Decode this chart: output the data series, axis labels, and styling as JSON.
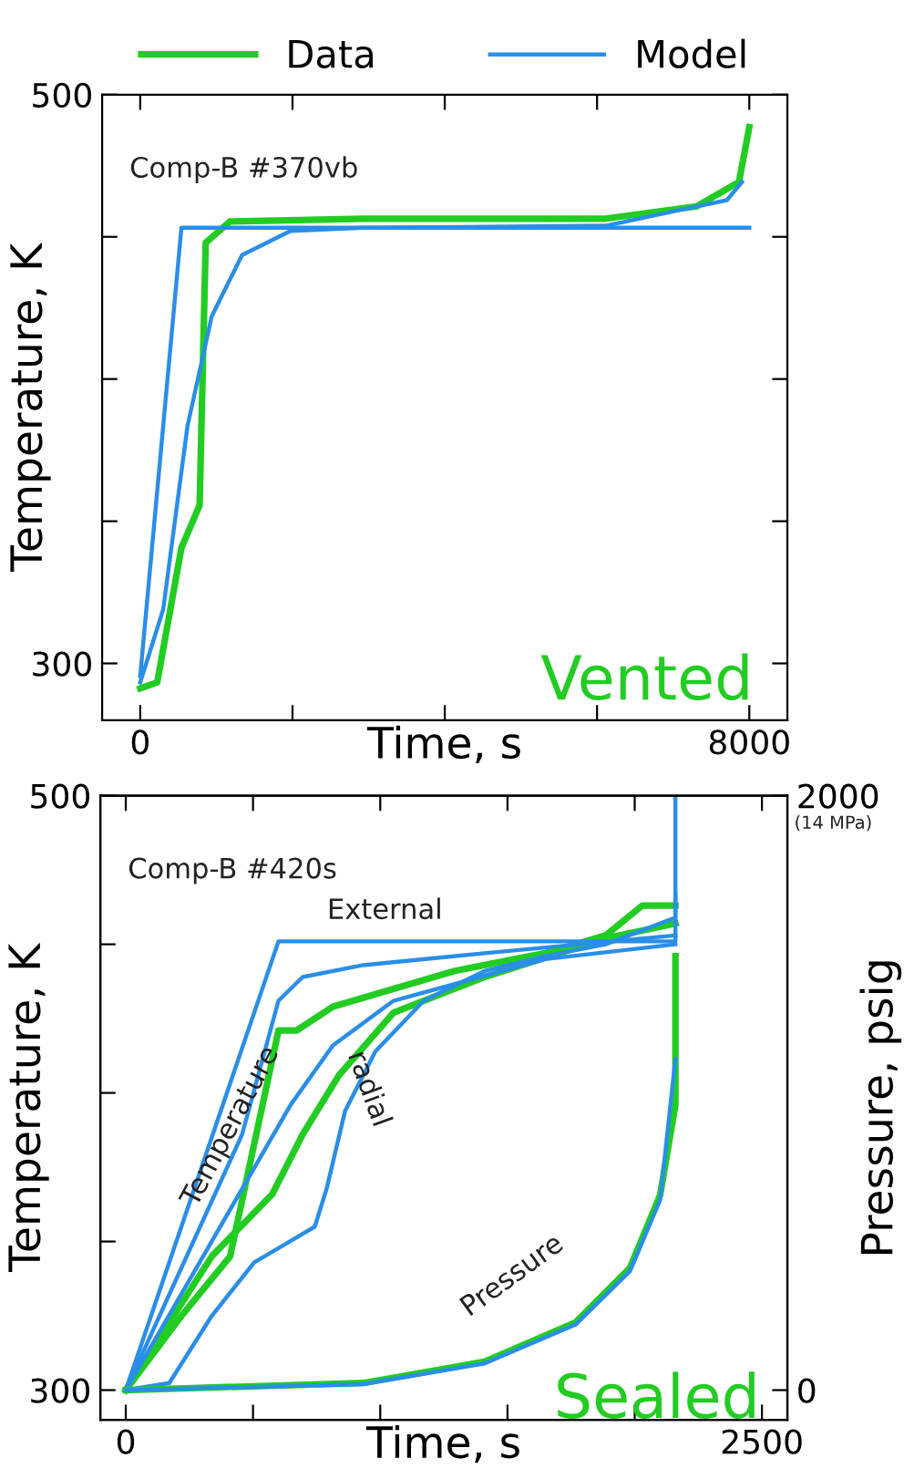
{
  "chart_data": [
    {
      "type": "line",
      "xlabel": "Time, s",
      "ylabel": "Temperature, K",
      "legend": "top",
      "grid": false,
      "xlim": [
        -500,
        8500
      ],
      "xticks": [
        0,
        {
          "value": 2000,
          "label": null
        },
        {
          "value": 4000,
          "label": null
        },
        {
          "value": 6000,
          "label": null
        },
        8000
      ],
      "ylim": [
        280,
        500
      ],
      "yticks": [
        300,
        {
          "value": 350,
          "label": null
        },
        {
          "value": 400,
          "label": null
        },
        {
          "value": 450,
          "label": null
        },
        500
      ],
      "annotations": [
        "Comp-B #370vb",
        "Vented"
      ],
      "series": [
        {
          "name": "Data",
          "color": "#22cc22",
          "x": [
            0,
            223,
            541,
            780,
            860,
            1178,
            2930,
            6113,
            7307,
            7864,
            8000
          ],
          "values": [
            291.2,
            293.3,
            340.6,
            355.6,
            447.9,
            455.4,
            456.4,
            456.4,
            460.7,
            469.3,
            488.6
          ]
        },
        {
          "name": "Model",
          "color": "#2a8ee8",
          "x": [
            0,
            302,
            621,
            939,
            1337,
            1974,
            2930,
            6113,
            7705,
            7904
          ],
          "values": [
            293.3,
            319,
            383.5,
            422,
            443.6,
            452.1,
            453.2,
            453.9,
            462.9,
            469.3
          ]
        },
        {
          "color": "#2a8ee8",
          "x": [
            0,
            541,
            8000
          ],
          "values": [
            295.5,
            453.2,
            453.2
          ]
        }
      ]
    },
    {
      "type": "line",
      "xlabel": "Time, s",
      "ylabel": "Temperature, K",
      "y2label": "Pressure, psig",
      "grid": false,
      "xlim": [
        -100,
        2600
      ],
      "xticks": [
        0,
        {
          "value": 500,
          "label": null
        },
        {
          "value": 1000,
          "label": null
        },
        {
          "value": 1500,
          "label": null
        },
        {
          "value": 2000,
          "label": null
        },
        2500
      ],
      "ylim": [
        290,
        500
      ],
      "yticks": [
        300,
        {
          "value": 350,
          "label": null
        },
        {
          "value": 400,
          "label": null
        },
        {
          "value": 450,
          "label": null
        },
        500
      ],
      "y2lim": [
        -100,
        2000
      ],
      "y2ticks": [
        0,
        2000
      ],
      "annotations": [
        "Comp-B #420s",
        "External",
        "Temperature",
        "radial",
        "Pressure",
        "Sealed",
        "(14 MPa)"
      ],
      "series": [
        {
          "color": "#22cc22",
          "x": [
            0,
            219,
            410,
            600,
            671,
            814,
            1052,
            1290,
            1648,
            1886,
            2029,
            2160
          ],
          "values": [
            300,
            325,
            345,
            421,
            421,
            429,
            435,
            441,
            447,
            453,
            463,
            463
          ]
        },
        {
          "color": "#22cc22",
          "x": [
            0,
            338,
            576,
            695,
            838,
            1052,
            1410,
            1886,
            2160
          ],
          "values": [
            300,
            345,
            366,
            386,
            406,
            427,
            439,
            452,
            457
          ]
        },
        {
          "color": "#2a8ee8",
          "x": [
            0,
            600,
            2160,
            2160
          ],
          "values": [
            300,
            451,
            451,
            500
          ]
        },
        {
          "color": "#2a8ee8",
          "x": [
            0,
            457,
            600,
            695,
            933,
            1410,
            2160
          ],
          "values": [
            300,
            386,
            431,
            439,
            443,
            447,
            453
          ]
        },
        {
          "color": "#2a8ee8",
          "x": [
            0,
            648,
            814,
            1052,
            1648,
            2160
          ],
          "values": [
            300,
            396,
            416,
            431,
            445,
            450
          ]
        },
        {
          "color": "#2a8ee8",
          "x": [
            0,
            171,
            338,
            505,
            624,
            743,
            790,
            862,
            981,
            1171,
            1410,
            1648,
            1886,
            2160,
            2160
          ],
          "values": [
            300,
            302.4,
            325,
            343,
            349,
            355,
            368,
            394,
            414,
            431,
            441,
            446,
            450,
            459,
            467
          ]
        },
        {
          "color": "#22cc22",
          "axis": "y2",
          "x": [
            0,
            933,
            1410,
            1767,
            1981,
            2100,
            2160,
            2160
          ],
          "values": [
            0,
            24,
            96,
            228,
            411,
            656,
            961,
            1460
          ]
        },
        {
          "color": "#2a8ee8",
          "axis": "y2",
          "x": [
            0,
            933,
            1410,
            1767,
            1981,
            2100,
            2160
          ],
          "values": [
            0,
            20,
            90,
            220,
            400,
            640,
            1114
          ]
        }
      ]
    }
  ]
}
